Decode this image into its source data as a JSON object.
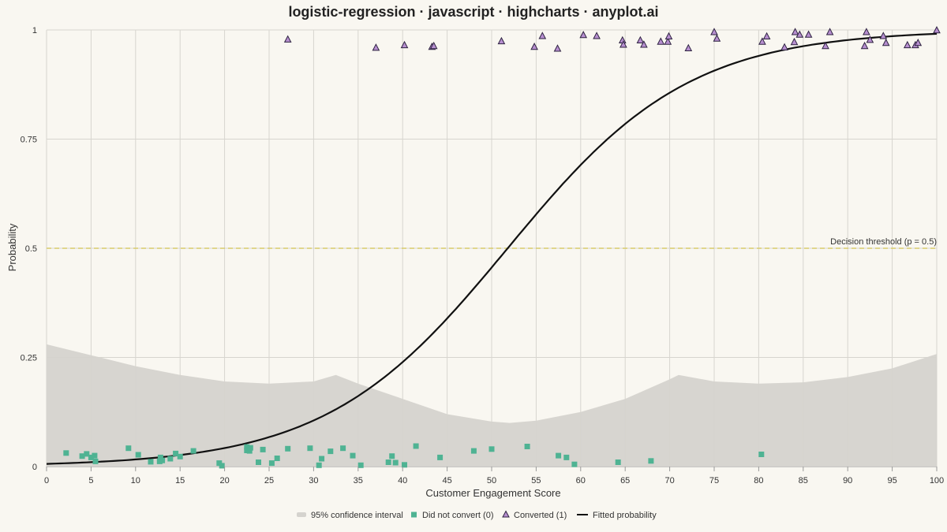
{
  "chart_data": {
    "type": "scatter",
    "title": "logistic-regression · javascript · highcharts · anyplot.ai",
    "xlabel": "Customer Engagement Score",
    "ylabel": "Probability",
    "xlim": [
      0,
      100
    ],
    "ylim": [
      0,
      1
    ],
    "x_ticks": [
      "0",
      "5",
      "10",
      "15",
      "20",
      "25",
      "30",
      "35",
      "40",
      "45",
      "50",
      "55",
      "60",
      "65",
      "70",
      "75",
      "80",
      "85",
      "90",
      "95",
      "100"
    ],
    "y_ticks": [
      "0",
      "0.25",
      "0.5",
      "0.75",
      "1"
    ],
    "grid": true,
    "legend_position": "bottom",
    "threshold": {
      "value": 0.5,
      "label": "Decision threshold (p = 0.5)"
    },
    "colors": {
      "band": "#d5d3ce",
      "class0": "#4fb393",
      "class1": "#b78fd0",
      "class1_edge": "#2d2240",
      "curve": "#111111",
      "threshold": "#d8cc6a"
    },
    "series": [
      {
        "name": "95% confidence interval",
        "kind": "band",
        "x": [
          0,
          5,
          10,
          15,
          20,
          25,
          30,
          32.5,
          35,
          40,
          45,
          50,
          52,
          55,
          60,
          65,
          70,
          71,
          75,
          80,
          85,
          90,
          95,
          100
        ],
        "lower": [
          0,
          0,
          0,
          0,
          0,
          0,
          0,
          0,
          0,
          0,
          0,
          0,
          0,
          0,
          0,
          0,
          0,
          0,
          0,
          0,
          0,
          0,
          0,
          0
        ],
        "upper": [
          0.28,
          0.255,
          0.23,
          0.21,
          0.195,
          0.19,
          0.195,
          0.21,
          0.19,
          0.155,
          0.12,
          0.103,
          0.1,
          0.105,
          0.125,
          0.155,
          0.2,
          0.21,
          0.195,
          0.19,
          0.193,
          0.205,
          0.225,
          0.258
        ]
      },
      {
        "name": "Did not convert (0)",
        "kind": "scatter",
        "marker": "square",
        "points": [
          [
            2.2,
            0.031
          ],
          [
            4,
            0.024
          ],
          [
            4.5,
            0.029
          ],
          [
            5,
            0.021
          ],
          [
            5.4,
            0.025
          ],
          [
            5.5,
            0.012
          ],
          [
            9.2,
            0.042
          ],
          [
            10.3,
            0.027
          ],
          [
            11.7,
            0.011
          ],
          [
            12.7,
            0.012
          ],
          [
            12.8,
            0.021
          ],
          [
            13,
            0.014
          ],
          [
            13.9,
            0.018
          ],
          [
            14.5,
            0.03
          ],
          [
            15,
            0.023
          ],
          [
            16.5,
            0.036
          ],
          [
            19.4,
            0.008
          ],
          [
            19.7,
            0.002
          ],
          [
            22.5,
            0.045
          ],
          [
            22.5,
            0.037
          ],
          [
            22.8,
            0.036
          ],
          [
            22.9,
            0.043
          ],
          [
            23.8,
            0.01
          ],
          [
            24.3,
            0.039
          ],
          [
            25.3,
            0.008
          ],
          [
            25.9,
            0.019
          ],
          [
            27.1,
            0.041
          ],
          [
            29.6,
            0.042
          ],
          [
            30.6,
            0.003
          ],
          [
            30.9,
            0.018
          ],
          [
            31.9,
            0.035
          ],
          [
            33.3,
            0.042
          ],
          [
            34.4,
            0.025
          ],
          [
            35.3,
            0.003
          ],
          [
            38.4,
            0.01
          ],
          [
            38.8,
            0.024
          ],
          [
            39.2,
            0.009
          ],
          [
            40.2,
            0.004
          ],
          [
            41.5,
            0.047
          ],
          [
            44.2,
            0.021
          ],
          [
            48,
            0.036
          ],
          [
            50,
            0.04
          ],
          [
            54,
            0.046
          ],
          [
            57.5,
            0.025
          ],
          [
            58.4,
            0.021
          ],
          [
            59.3,
            0.005
          ],
          [
            64.2,
            0.01
          ],
          [
            67.9,
            0.013
          ],
          [
            80.3,
            0.028
          ]
        ]
      },
      {
        "name": "Converted (1)",
        "kind": "scatter",
        "marker": "triangle",
        "points": [
          [
            27.1,
            0.978
          ],
          [
            37,
            0.959
          ],
          [
            40.2,
            0.965
          ],
          [
            43.3,
            0.961
          ],
          [
            43.5,
            0.963
          ],
          [
            51.1,
            0.974
          ],
          [
            54.8,
            0.961
          ],
          [
            55.7,
            0.986
          ],
          [
            57.4,
            0.957
          ],
          [
            60.3,
            0.988
          ],
          [
            61.8,
            0.986
          ],
          [
            64.7,
            0.976
          ],
          [
            64.8,
            0.966
          ],
          [
            66.7,
            0.976
          ],
          [
            67.1,
            0.966
          ],
          [
            69,
            0.973
          ],
          [
            69.8,
            0.973
          ],
          [
            69.9,
            0.985
          ],
          [
            72.1,
            0.958
          ],
          [
            75,
            0.995
          ],
          [
            75.3,
            0.98
          ],
          [
            80.4,
            0.973
          ],
          [
            80.9,
            0.985
          ],
          [
            82.9,
            0.96
          ],
          [
            84,
            0.972
          ],
          [
            84.1,
            0.995
          ],
          [
            84.6,
            0.989
          ],
          [
            85.6,
            0.989
          ],
          [
            87.5,
            0.963
          ],
          [
            88,
            0.995
          ],
          [
            91.9,
            0.963
          ],
          [
            92.1,
            0.995
          ],
          [
            92.5,
            0.977
          ],
          [
            94,
            0.986
          ],
          [
            94.3,
            0.97
          ],
          [
            96.7,
            0.965
          ],
          [
            97.6,
            0.965
          ],
          [
            97.9,
            0.97
          ],
          [
            100,
            0.999
          ]
        ]
      },
      {
        "name": "Fitted probability",
        "kind": "line",
        "model": {
          "x0": 51.8,
          "k": 0.098
        }
      }
    ]
  }
}
